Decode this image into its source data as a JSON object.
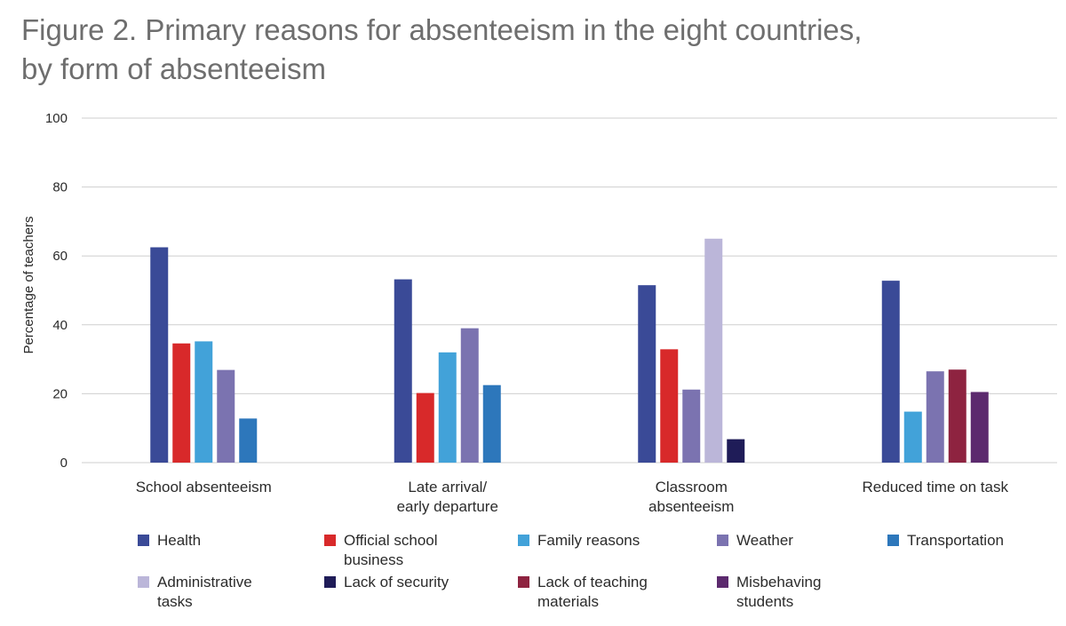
{
  "title_lines": [
    "Figure 2. Primary reasons for absenteeism in the eight countries,",
    "by form of absenteeism"
  ],
  "chart_data": {
    "type": "bar",
    "title": "Figure 2. Primary reasons for absenteeism in the eight countries, by form of absenteeism",
    "ylabel": "Percentage of teachers",
    "ylim": [
      0,
      100
    ],
    "yticks": [
      0,
      20,
      40,
      60,
      80,
      100
    ],
    "grid": true,
    "legend_position": "bottom",
    "categories": [
      "School absenteeism",
      "Late arrival/\nearly departure",
      "Classroom\nabsenteeism",
      "Reduced time on task"
    ],
    "series": [
      {
        "name": "Health",
        "color": "#3a4a97",
        "values": [
          62.5,
          53.2,
          51.5,
          52.8
        ]
      },
      {
        "name": "Official school\nbusiness",
        "color": "#d8292a",
        "values": [
          34.6,
          20.2,
          32.9,
          null
        ]
      },
      {
        "name": "Family reasons",
        "color": "#42a2d9",
        "values": [
          35.2,
          32.0,
          null,
          14.8
        ]
      },
      {
        "name": "Weather",
        "color": "#7b73b0",
        "values": [
          26.9,
          39.0,
          21.2,
          26.5
        ]
      },
      {
        "name": "Transportation",
        "color": "#2d77bb",
        "values": [
          12.8,
          22.5,
          null,
          null
        ]
      },
      {
        "name": "Administrative\ntasks",
        "color": "#bbb6d9",
        "values": [
          null,
          null,
          65.0,
          null
        ]
      },
      {
        "name": "Lack of security",
        "color": "#1f1c58",
        "values": [
          null,
          null,
          6.8,
          null
        ]
      },
      {
        "name": "Lack of teaching\nmaterials",
        "color": "#8e2340",
        "values": [
          null,
          null,
          null,
          27.0
        ]
      },
      {
        "name": "Misbehaving\nstudents",
        "color": "#5c2a6e",
        "values": [
          null,
          null,
          null,
          20.5
        ]
      }
    ]
  }
}
